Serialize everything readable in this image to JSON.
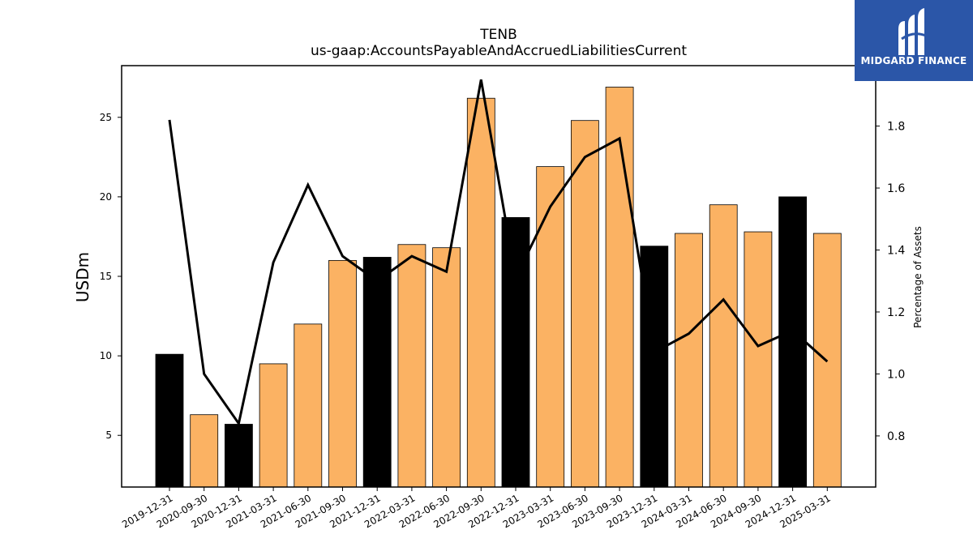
{
  "chart_data": {
    "type": "bar",
    "title": "TENB",
    "subtitle": "us-gaap:AccountsPayableAndAccruedLiabilitiesCurrent",
    "ylabel": "USDm",
    "y2label": "Percentage of Assets",
    "ylim": [
      1.75,
      28.25
    ],
    "y2lim": [
      0.635,
      1.995
    ],
    "yticks": [
      "5",
      "10",
      "15",
      "20",
      "25"
    ],
    "y2ticks": [
      "0.8",
      "1.0",
      "1.2",
      "1.4",
      "1.6",
      "1.8"
    ],
    "categories": [
      "2019-12-31",
      "2020-09-30",
      "2020-12-31",
      "2021-03-31",
      "2021-06-30",
      "2021-09-30",
      "2021-12-31",
      "2022-03-31",
      "2022-06-30",
      "2022-09-30",
      "2022-12-31",
      "2023-03-31",
      "2023-06-30",
      "2023-09-30",
      "2023-12-31",
      "2024-03-31",
      "2024-06-30",
      "2024-09-30",
      "2024-12-31",
      "2025-03-31"
    ],
    "series": [
      {
        "kind": "bar",
        "values": [
          10.1,
          6.3,
          5.7,
          9.5,
          12.0,
          16.0,
          16.2,
          17.0,
          16.8,
          26.2,
          18.7,
          21.9,
          24.8,
          26.9,
          16.9,
          17.7,
          19.5,
          17.8,
          20.0,
          17.7
        ],
        "year_end": [
          true,
          false,
          true,
          false,
          false,
          false,
          true,
          false,
          false,
          false,
          true,
          false,
          false,
          false,
          true,
          false,
          false,
          false,
          true,
          false
        ]
      },
      {
        "kind": "line",
        "axis": "right",
        "values": [
          1.82,
          1.0,
          0.84,
          1.36,
          1.61,
          1.38,
          1.3,
          1.38,
          1.33,
          1.95,
          1.31,
          1.54,
          1.7,
          1.76,
          1.07,
          1.13,
          1.24,
          1.09,
          1.14,
          1.04
        ]
      }
    ],
    "colors": {
      "bar": "#fbb263",
      "bar_year_end": "#000000",
      "line": "#000000"
    }
  },
  "logo": {
    "text": "MIDGARD FINANCE",
    "bg": "#2b56a8"
  }
}
